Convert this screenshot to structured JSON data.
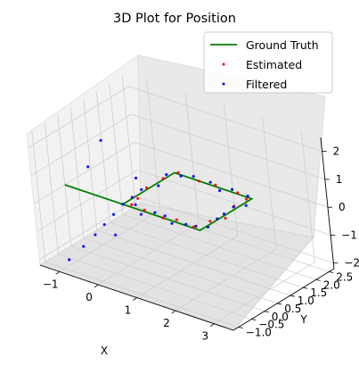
{
  "chart_data": {
    "type": "scatter",
    "title": "3D Plot for Position",
    "xlabel": "X",
    "ylabel": "Y",
    "zlabel": "",
    "xlim": [
      -1.5,
      3.5
    ],
    "ylim": [
      -1.2,
      2.7
    ],
    "zlim": [
      -2.2,
      2.5
    ],
    "x_ticks": [
      "−1",
      "0",
      "1",
      "2",
      "3"
    ],
    "y_ticks": [
      "−1.0",
      "−0.5",
      "0.0",
      "0.5",
      "1.0",
      "1.5",
      "2.0",
      "2.5"
    ],
    "z_ticks": [
      "−2",
      "−1",
      "0",
      "1",
      "2"
    ],
    "grid": true,
    "legend_position": "top-right",
    "series": [
      {
        "name": "Ground Truth",
        "kind": "line",
        "color": "#008000",
        "points": [
          [
            -1.5,
            0,
            0
          ],
          [
            0,
            0,
            0
          ],
          [
            2,
            0,
            0
          ],
          [
            2,
            2,
            0
          ],
          [
            0,
            2,
            0
          ],
          [
            0,
            0,
            0
          ]
        ]
      },
      {
        "name": "Estimated",
        "kind": "scatter",
        "color": "#ff0000",
        "points": [
          [
            0.2,
            0.05,
            0.05
          ],
          [
            0.6,
            -0.05,
            0.1
          ],
          [
            1.0,
            0.05,
            -0.05
          ],
          [
            1.4,
            0.0,
            0.1
          ],
          [
            1.8,
            0.05,
            0.0
          ],
          [
            2.0,
            0.4,
            0.1
          ],
          [
            2.05,
            0.9,
            -0.05
          ],
          [
            1.95,
            1.4,
            0.05
          ],
          [
            2.0,
            1.8,
            0.1
          ],
          [
            1.6,
            2.05,
            0.0
          ],
          [
            1.1,
            1.95,
            0.1
          ],
          [
            0.6,
            2.05,
            -0.05
          ],
          [
            0.1,
            2.0,
            0.05
          ],
          [
            0.05,
            1.5,
            0.1
          ],
          [
            -0.05,
            1.0,
            0.0
          ],
          [
            0.05,
            0.5,
            -0.05
          ]
        ]
      },
      {
        "name": "Filtered",
        "kind": "scatter",
        "color": "#0000ff",
        "points": [
          [
            -1.0,
            -0.8,
            -2.0
          ],
          [
            -0.8,
            -0.5,
            -1.6
          ],
          [
            -0.6,
            -0.3,
            -1.2
          ],
          [
            -0.4,
            -0.2,
            -0.8
          ],
          [
            -0.2,
            -0.1,
            -0.4
          ],
          [
            -1.2,
            0.5,
            0.5
          ],
          [
            -1.3,
            1.2,
            1.0
          ],
          [
            -0.9,
            1.8,
            -0.5
          ],
          [
            -0.5,
            0.3,
            -1.5
          ],
          [
            0.0,
            0.0,
            0.0
          ],
          [
            0.3,
            0.05,
            0.1
          ],
          [
            0.5,
            -0.05,
            -0.1
          ],
          [
            0.8,
            0.05,
            0.05
          ],
          [
            1.1,
            0.0,
            0.1
          ],
          [
            1.3,
            -0.05,
            -0.05
          ],
          [
            1.6,
            0.05,
            0.0
          ],
          [
            1.9,
            0.0,
            0.1
          ],
          [
            2.0,
            0.3,
            -0.05
          ],
          [
            2.05,
            0.6,
            0.1
          ],
          [
            1.95,
            1.0,
            0.0
          ],
          [
            2.0,
            1.3,
            0.1
          ],
          [
            2.05,
            1.7,
            -0.05
          ],
          [
            1.9,
            2.0,
            0.05
          ],
          [
            1.5,
            2.0,
            0.1
          ],
          [
            1.2,
            1.95,
            -0.05
          ],
          [
            0.9,
            2.05,
            0.05
          ],
          [
            0.5,
            2.0,
            0.1
          ],
          [
            0.2,
            1.95,
            0.0
          ],
          [
            0.0,
            1.7,
            0.1
          ],
          [
            0.05,
            1.3,
            -0.05
          ],
          [
            -0.05,
            0.8,
            0.05
          ],
          [
            0.05,
            0.3,
            0.1
          ]
        ]
      }
    ]
  }
}
